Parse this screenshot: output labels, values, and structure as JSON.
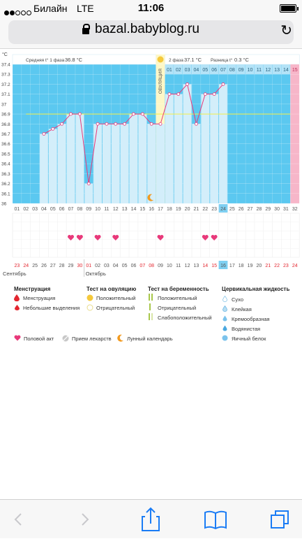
{
  "status_bar": {
    "carrier": "Билайн",
    "network": "LTE",
    "time": "11:06"
  },
  "browser": {
    "url": "bazal.babyblog.ru"
  },
  "chart": {
    "unit": "°C",
    "stats": {
      "phase1_label": "Средняя t° 1 фаза",
      "phase1_value": "36.8 °C",
      "phase2_label": "2 фаза",
      "phase2_value": "37.1 °C",
      "diff_label": "Разница t°",
      "diff_value": "0.3 °C"
    },
    "ovulation_label": "ОВУЛЯЦИЯ",
    "month_sep": "Сентябрь",
    "month_oct": "Октябрь"
  },
  "chart_data": {
    "type": "line",
    "ylim": [
      36.0,
      37.4
    ],
    "y_ticks": [
      "37.4",
      "37.3",
      "37.2",
      "37.1",
      "37",
      "36.9",
      "36.8",
      "36.7",
      "36.6",
      "36.5",
      "36.4",
      "36.3",
      "36.2",
      "36.1",
      "36"
    ],
    "cycle_days": [
      "01",
      "02",
      "03",
      "04",
      "05",
      "06",
      "07",
      "08",
      "09",
      "10",
      "11",
      "12",
      "13",
      "14",
      "15",
      "16",
      "17",
      "18",
      "19",
      "20",
      "21",
      "22",
      "23",
      "24",
      "25",
      "26",
      "27",
      "28",
      "29",
      "30",
      "31",
      "32"
    ],
    "dates": [
      "23",
      "24",
      "25",
      "26",
      "27",
      "28",
      "29",
      "30",
      "01",
      "02",
      "03",
      "04",
      "05",
      "06",
      "07",
      "08",
      "09",
      "10",
      "11",
      "12",
      "13",
      "14",
      "15",
      "16",
      "17",
      "18",
      "19",
      "20",
      "21",
      "22",
      "23",
      "24"
    ],
    "phase2_days": [
      "01",
      "02",
      "03",
      "04",
      "05",
      "06",
      "07",
      "08",
      "09",
      "10",
      "11",
      "12",
      "13",
      "14",
      "15"
    ],
    "current_day": "24",
    "current_date": "16",
    "coverline": 36.9,
    "ovulation_day": 17,
    "temperatures": [
      {
        "day": 4,
        "value": 36.7
      },
      {
        "day": 5,
        "value": 36.75
      },
      {
        "day": 6,
        "value": 36.8
      },
      {
        "day": 7,
        "value": 36.9
      },
      {
        "day": 8,
        "value": 36.9
      },
      {
        "day": 9,
        "value": 36.2
      },
      {
        "day": 10,
        "value": 36.8
      },
      {
        "day": 11,
        "value": 36.8
      },
      {
        "day": 12,
        "value": 36.8
      },
      {
        "day": 13,
        "value": 36.8
      },
      {
        "day": 14,
        "value": 36.9
      },
      {
        "day": 15,
        "value": 36.9
      },
      {
        "day": 16,
        "value": 36.8
      },
      {
        "day": 17,
        "value": 36.8
      },
      {
        "day": 18,
        "value": 37.1
      },
      {
        "day": 19,
        "value": 37.1
      },
      {
        "day": 20,
        "value": 37.2
      },
      {
        "day": 21,
        "value": 36.8
      },
      {
        "day": 22,
        "value": 37.1
      },
      {
        "day": 23,
        "value": 37.1
      },
      {
        "day": 24,
        "value": 37.2
      }
    ],
    "intercourse_days": [
      7,
      8,
      10,
      12,
      17,
      22,
      23
    ],
    "lunar_day": 16,
    "red_dates": [
      "23",
      "24",
      "30",
      "01",
      "07",
      "08",
      "14",
      "15",
      "21",
      "22"
    ]
  },
  "legend": {
    "menstruation_header": "Менструация",
    "menstruation": "Менструация",
    "spotting": "Небольшие выделения",
    "ovulation_test_header": "Тест на овуляцию",
    "ovulation_positive": "Положительный",
    "ovulation_negative": "Отрицательный",
    "pregnancy_test_header": "Тест на беременность",
    "pregnancy_positive": "Положительный",
    "pregnancy_negative": "Отрицательный",
    "pregnancy_weak": "Слабоположительный",
    "cervical_header": "Цервикальная жидкость",
    "cervical_dry": "Сухо",
    "cervical_sticky": "Клейкая",
    "cervical_creamy": "Кремообразная",
    "cervical_watery": "Водянистая",
    "cervical_eggwhite": "Яичный белок",
    "intercourse": "Половой акт",
    "medication": "Прием лекарств",
    "lunar": "Лунный календарь"
  },
  "colors": {
    "phase_bg": "#5bc8f0",
    "bar_fill": "#d3eefa",
    "line": "#e8397a",
    "coverline": "#f4ef4a",
    "ovulation_bg": "#fdf7c6",
    "phase2_bg": "#e0f3fc",
    "pink": "#f7b6c9",
    "heart": "#e8397a"
  }
}
